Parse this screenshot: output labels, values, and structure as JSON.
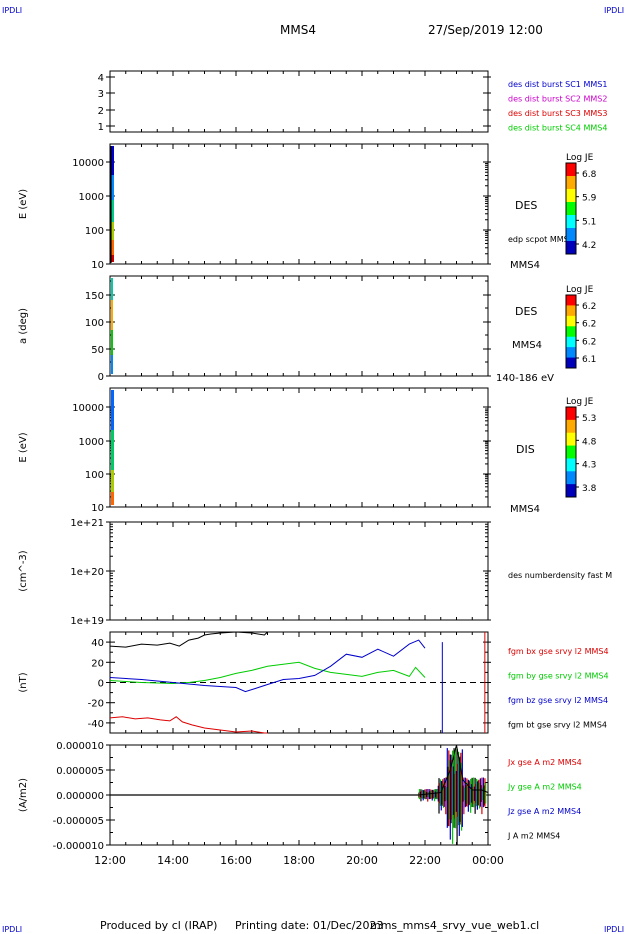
{
  "corner_label": "IPDLI",
  "header": {
    "spacecraft": "MMS4",
    "datetime": "27/Sep/2019 12:00"
  },
  "footer": {
    "produced_by": "Produced by cl (IRAP)",
    "printing_date": "Printing date: 01/Dec/2023",
    "file": "mms_mms4_srvy_vue_web1.cl"
  },
  "colors": {
    "blue": "#0000cc",
    "magenta": "#cc00cc",
    "red": "#dd0000",
    "green": "#00cc00",
    "black": "#000000"
  },
  "chart_data": [
    {
      "type": "line",
      "panel": "burst",
      "ylabel": "",
      "ylim": [
        0.5,
        4.5
      ],
      "yticks": [
        "4",
        "3",
        "2",
        "1"
      ],
      "legend": [
        {
          "label": "des dist burst SC1 MMS1",
          "color": "#0000cc"
        },
        {
          "label": "des dist burst SC2 MMS2",
          "color": "#cc00cc"
        },
        {
          "label": "des dist burst SC3 MMS3",
          "color": "#dd0000"
        },
        {
          "label": "des dist burst SC4 MMS4",
          "color": "#00cc00"
        }
      ],
      "series": []
    },
    {
      "type": "heatmap",
      "panel": "des_energy",
      "ylabel": "E (eV)",
      "yscale": "log",
      "ylim": [
        10,
        30000
      ],
      "yticks": [
        "10000",
        "1000",
        "100",
        "10"
      ],
      "side_labels": [
        "DES",
        "edp scpot MMS4",
        "MMS4"
      ],
      "colorbar": {
        "title": "Log JE",
        "ticks": [
          "6.8",
          "5.9",
          "5.1",
          "4.2"
        ]
      }
    },
    {
      "type": "heatmap",
      "panel": "des_pitch",
      "ylabel": "a (deg)",
      "ylim": [
        0,
        180
      ],
      "yticks": [
        "150",
        "100",
        "50",
        "0"
      ],
      "side_labels": [
        "DES",
        "MMS4",
        "140-186 eV"
      ],
      "colorbar": {
        "title": "Log JE",
        "ticks": [
          "6.2",
          "6.2",
          "6.2",
          "6.1"
        ]
      }
    },
    {
      "type": "heatmap",
      "panel": "dis_energy",
      "ylabel": "E (eV)",
      "yscale": "log",
      "ylim": [
        10,
        30000
      ],
      "yticks": [
        "10000",
        "1000",
        "100",
        "10"
      ],
      "side_labels": [
        "DIS",
        "MMS4"
      ],
      "colorbar": {
        "title": "Log JE",
        "ticks": [
          "5.3",
          "4.8",
          "4.3",
          "3.8"
        ]
      }
    },
    {
      "type": "line",
      "panel": "density",
      "ylabel": "(cm^-3)",
      "yscale": "log",
      "ylim": [
        1e+19,
        1e+21
      ],
      "yticks": [
        "1e+21",
        "1e+20",
        "1e+19"
      ],
      "legend": [
        {
          "label": "des numberdensity fast M",
          "color": "#000000"
        }
      ],
      "series": []
    },
    {
      "type": "line",
      "panel": "fgm",
      "ylabel": "(nT)",
      "ylim": [
        -50,
        50
      ],
      "yticks": [
        "40",
        "20",
        "0",
        "-20",
        "-40"
      ],
      "legend": [
        {
          "label": "fgm bx gse srvy l2 MMS4",
          "color": "#dd0000"
        },
        {
          "label": "fgm by gse srvy l2 MMS4",
          "color": "#00cc00"
        },
        {
          "label": "fgm bz gse srvy l2 MMS4",
          "color": "#0000cc"
        },
        {
          "label": "fgm bt gse srvy l2 MMS4",
          "color": "#000000"
        }
      ],
      "series": [
        {
          "name": "fgm bt gse srvy l2 MMS4",
          "color": "#000000",
          "x": [
            0,
            0.5,
            1.0,
            1.5,
            1.9,
            2.2,
            2.5,
            2.8,
            3.0,
            3.2,
            3.5,
            4.0,
            4.5,
            4.9,
            5.0
          ],
          "y": [
            36,
            35,
            38,
            37,
            39,
            36,
            42,
            44,
            47,
            48,
            49,
            50,
            49,
            47,
            50
          ]
        },
        {
          "name": "fgm bx gse srvy l2 MMS4",
          "color": "#dd0000",
          "x": [
            0,
            0.4,
            0.8,
            1.2,
            1.6,
            1.9,
            2.1,
            2.3,
            2.6,
            3.0,
            3.5,
            4.0,
            4.5,
            4.9,
            5.0
          ],
          "y": [
            -35,
            -34,
            -36,
            -35,
            -37,
            -38,
            -34,
            -39,
            -42,
            -45,
            -47,
            -49,
            -48,
            -50,
            -50
          ]
        },
        {
          "name": "fgm by gse srvy l2 MMS4",
          "color": "#00cc00",
          "x": [
            0,
            1.0,
            2.0,
            2.5,
            3.0,
            3.5,
            4.0,
            4.5,
            5.0,
            5.5,
            6.0,
            6.5,
            7.0,
            7.5,
            8.0,
            8.5,
            9.0,
            9.5,
            9.7,
            10.0
          ],
          "y": [
            2,
            0,
            -1,
            0,
            2,
            5,
            9,
            12,
            16,
            18,
            20,
            14,
            10,
            8,
            6,
            10,
            12,
            6,
            15,
            5
          ]
        },
        {
          "name": "fgm bz gse srvy l2 MMS4",
          "color": "#0000cc",
          "x": [
            0,
            1.0,
            2.0,
            3.0,
            4.0,
            4.3,
            4.6,
            5.0,
            5.5,
            6.0,
            6.5,
            7.0,
            7.5,
            8.0,
            8.5,
            9.0,
            9.5,
            9.8,
            10.0
          ],
          "y": [
            5,
            3,
            0,
            -3,
            -5,
            -9,
            -6,
            -2,
            3,
            4,
            7,
            16,
            28,
            25,
            33,
            26,
            38,
            42,
            34
          ]
        }
      ]
    },
    {
      "type": "line",
      "panel": "current",
      "ylabel": "(A/m2)",
      "ylim": [
        -1e-05,
        1e-05
      ],
      "yticks": [
        "0.000010",
        "0.000005",
        "0.000000",
        "-0.000005",
        "-0.000010"
      ],
      "legend": [
        {
          "label": "Jx gse A m2 MMS4",
          "color": "#dd0000"
        },
        {
          "label": "Jy gse A m2 MMS4",
          "color": "#00cc00"
        },
        {
          "label": "Jz gse A m2 MMS4",
          "color": "#0000cc"
        },
        {
          "label": "J A m2 MMS4",
          "color": "#000000"
        }
      ],
      "series": [
        {
          "name": "J A m2 MMS4",
          "color": "#000000",
          "x": [
            0,
            2,
            4,
            6,
            8,
            9.8,
            10.5,
            10.8,
            11.0,
            11.2,
            11.5,
            11.8,
            12.0
          ],
          "y": [
            0,
            0,
            0,
            0,
            0,
            0,
            5e-07,
            5e-06,
            1e-05,
            3e-06,
            1e-06,
            1e-06,
            5e-07
          ]
        }
      ]
    }
  ],
  "x_axis": {
    "ticks": [
      "12:00",
      "14:00",
      "16:00",
      "18:00",
      "20:00",
      "22:00",
      "00:00"
    ]
  }
}
